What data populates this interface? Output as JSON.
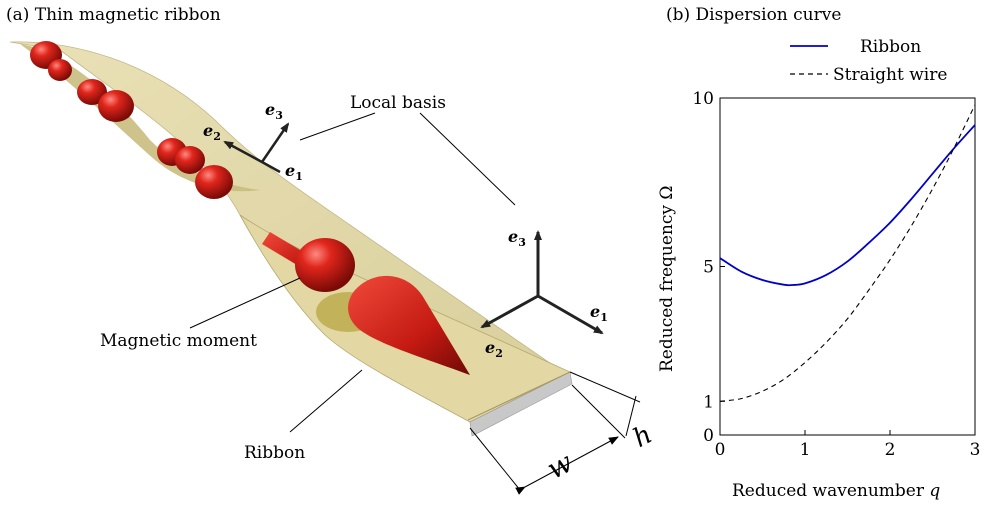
{
  "panel_a": {
    "title": "(a) Thin magnetic ribbon",
    "labels": {
      "local_basis": "Local basis",
      "magnetic_moment": "Magnetic moment",
      "ribbon": "Ribbon",
      "width": "w",
      "thickness": "h"
    },
    "vectors": {
      "e1": "e",
      "e1_sub": "1",
      "e2": "e",
      "e2_sub": "2",
      "e3": "e",
      "e3_sub": "3"
    },
    "colors": {
      "ribbon": "#d9cf96",
      "moment": "#cc1a14",
      "arrow": "#222222"
    }
  },
  "panel_b": {
    "title": "(b) Dispersion curve",
    "xlabel": "Reduced wavenumber",
    "xlabel_var": "q",
    "ylabel": "Reduced frequency Ω",
    "legend": {
      "ribbon": "Ribbon",
      "straight_wire": "Straight wire"
    },
    "x_ticks": [
      "0",
      "1",
      "2",
      "3"
    ],
    "y_ticks": [
      "0",
      "1",
      "5",
      "10"
    ]
  },
  "chart_data": {
    "type": "line",
    "title": "(b) Dispersion curve",
    "xlabel": "Reduced wavenumber q",
    "ylabel": "Reduced frequency Ω",
    "xlim": [
      0,
      3
    ],
    "ylim": [
      0,
      10
    ],
    "legend_position": "top-right",
    "grid": false,
    "series": [
      {
        "name": "Ribbon",
        "style": "solid",
        "color": "#0000cc",
        "x": [
          0,
          0.25,
          0.5,
          0.75,
          0.85,
          1.0,
          1.25,
          1.5,
          1.75,
          2.0,
          2.25,
          2.5,
          2.75,
          3.0
        ],
        "y": [
          5.25,
          4.85,
          4.6,
          4.46,
          4.45,
          4.5,
          4.75,
          5.15,
          5.7,
          6.3,
          7.0,
          7.75,
          8.5,
          9.2
        ]
      },
      {
        "name": "Straight wire",
        "style": "dashed",
        "color": "#000000",
        "x": [
          0,
          0.25,
          0.5,
          0.75,
          1.0,
          1.25,
          1.5,
          1.75,
          2.0,
          2.25,
          2.5,
          2.75,
          3.0
        ],
        "y": [
          1.0,
          1.08,
          1.3,
          1.65,
          2.15,
          2.75,
          3.45,
          4.3,
          5.2,
          6.2,
          7.3,
          8.5,
          9.8
        ]
      }
    ]
  }
}
